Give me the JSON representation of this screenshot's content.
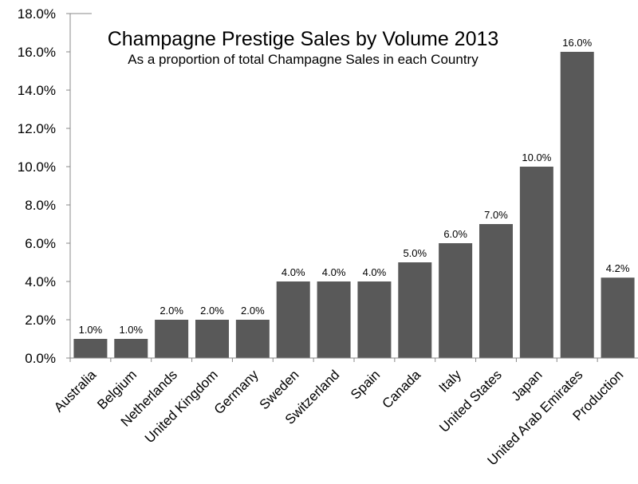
{
  "chart_data": {
    "type": "bar",
    "title": "Champagne Prestige Sales by Volume 2013",
    "subtitle": "As a proportion of total Champagne Sales in each Country",
    "xlabel": "",
    "ylabel": "",
    "categories": [
      "Australia",
      "Belgium",
      "Netherlands",
      "United Kingdom",
      "Germany",
      "Sweden",
      "Switzerland",
      "Spain",
      "Canada",
      "Italy",
      "United States",
      "Japan",
      "United Arab Emirates",
      "Production"
    ],
    "values": [
      1.0,
      1.0,
      2.0,
      2.0,
      2.0,
      4.0,
      4.0,
      4.0,
      5.0,
      6.0,
      7.0,
      10.0,
      16.0,
      4.2
    ],
    "data_labels": [
      "1.0%",
      "1.0%",
      "2.0%",
      "2.0%",
      "2.0%",
      "4.0%",
      "4.0%",
      "4.0%",
      "5.0%",
      "6.0%",
      "7.0%",
      "10.0%",
      "16.0%",
      "4.2%"
    ],
    "y_ticks": [
      "0.0%",
      "2.0%",
      "4.0%",
      "6.0%",
      "8.0%",
      "10.0%",
      "12.0%",
      "14.0%",
      "16.0%",
      "18.0%"
    ],
    "ylim": [
      0,
      18
    ],
    "grid": false,
    "legend": "none",
    "bar_color": "#595959"
  }
}
